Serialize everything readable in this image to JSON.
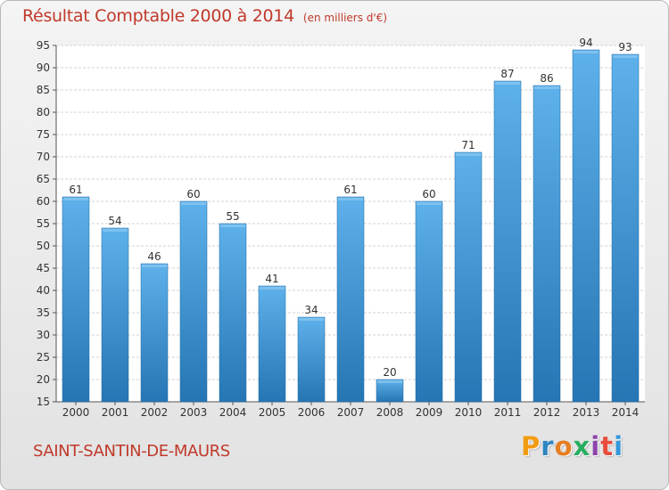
{
  "header": {
    "title": "Résultat Comptable 2000 à 2014",
    "unit": "(en milliers d'€)"
  },
  "footer": {
    "commune": "SAINT-SANTIN-DE-MAURS",
    "logo_text": "Proxiti"
  },
  "colors": {
    "title": "#c0392b",
    "bar_top": "#5eb1ea",
    "bar_bottom": "#2675b4",
    "grid": "#d3d3d3",
    "logo_letters": [
      "#f39c12",
      "#2e86c1",
      "#e67e22",
      "#27ae60",
      "#8e44ad",
      "#e74c3c",
      "#3498db"
    ]
  },
  "chart_data": {
    "type": "bar",
    "title": "Résultat Comptable 2000 à 2014",
    "subtitle": "(en milliers d'€)",
    "categories": [
      "2000",
      "2001",
      "2002",
      "2003",
      "2004",
      "2005",
      "2006",
      "2007",
      "2008",
      "2009",
      "2010",
      "2011",
      "2012",
      "2013",
      "2014"
    ],
    "values": [
      61,
      54,
      46,
      60,
      55,
      41,
      34,
      61,
      20,
      60,
      71,
      87,
      86,
      94,
      93
    ],
    "ylim": [
      15,
      95
    ],
    "yticks": [
      15,
      20,
      25,
      30,
      35,
      40,
      45,
      50,
      55,
      60,
      65,
      70,
      75,
      80,
      85,
      90,
      95
    ],
    "grid": true,
    "data_labels": true
  }
}
